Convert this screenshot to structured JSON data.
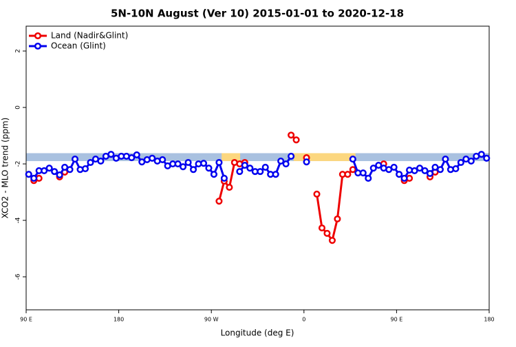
{
  "chart_data": {
    "type": "line",
    "title": "5N-10N August (Ver 10)   2015-01-01 to 2020-12-18",
    "xlabel": "Longitude (deg E)",
    "ylabel": "XCO2 - MLO trend (ppm)",
    "x": [
      92.5,
      97.5,
      102.5,
      107.5,
      112.5,
      117.5,
      122.5,
      127.5,
      132.5,
      137.5,
      142.5,
      147.5,
      152.5,
      157.5,
      162.5,
      167.5,
      172.5,
      177.5,
      182.5,
      187.5,
      192.5,
      197.5,
      202.5,
      207.5,
      212.5,
      217.5,
      222.5,
      227.5,
      232.5,
      237.5,
      242.5,
      247.5,
      252.5,
      257.5,
      262.5,
      267.5,
      272.5,
      277.5,
      282.5,
      287.5,
      292.5,
      297.5,
      302.5,
      307.5,
      312.5,
      317.5,
      322.5,
      327.5,
      332.5,
      337.5,
      342.5,
      347.5,
      352.5,
      357.5,
      362.5,
      367.5,
      372.5,
      377.5,
      382.5,
      387.5,
      392.5,
      397.5,
      402.5,
      407.5,
      412.5,
      417.5,
      422.5,
      427.5,
      432.5,
      437.5,
      442.5,
      447.5,
      452.5,
      457.5,
      462.5,
      467.5,
      472.5,
      477.5,
      482.5,
      487.5,
      492.5,
      497.5,
      502.5,
      507.5,
      512.5,
      517.5,
      522.5,
      527.5,
      532.5,
      537.5
    ],
    "series": [
      {
        "name": "Land (Nadir&Glint)",
        "color": "#ee0000",
        "values": [
          null,
          -2.59,
          -2.51,
          null,
          null,
          null,
          -2.46,
          -2.29,
          null,
          null,
          null,
          null,
          null,
          null,
          null,
          null,
          null,
          null,
          null,
          null,
          null,
          null,
          null,
          null,
          null,
          null,
          null,
          null,
          null,
          null,
          null,
          null,
          null,
          null,
          null,
          null,
          null,
          -3.32,
          -2.61,
          -2.83,
          -1.95,
          -2.0,
          -1.95,
          null,
          null,
          null,
          null,
          null,
          null,
          null,
          null,
          -0.98,
          -1.15,
          null,
          -1.78,
          null,
          -3.07,
          -4.27,
          -4.46,
          -4.71,
          -3.95,
          -2.37,
          -2.37,
          -2.2,
          null,
          null,
          null,
          null,
          null,
          -2.0,
          null,
          null,
          null,
          -2.59,
          -2.51,
          null,
          null,
          null,
          -2.46,
          -2.29,
          null,
          null,
          null,
          null,
          null,
          null,
          null,
          null,
          null,
          null
        ]
      },
      {
        "name": "Ocean (Glint)",
        "color": "#0000ee",
        "values": [
          -2.37,
          -2.51,
          -2.24,
          -2.24,
          -2.15,
          -2.27,
          -2.39,
          -2.12,
          -2.2,
          -1.83,
          -2.2,
          -2.17,
          -1.95,
          -1.83,
          -1.9,
          -1.73,
          -1.66,
          -1.8,
          -1.73,
          -1.73,
          -1.78,
          -1.68,
          -1.93,
          -1.85,
          -1.8,
          -1.9,
          -1.85,
          -2.07,
          -2.0,
          -2.0,
          -2.1,
          -1.95,
          -2.2,
          -2.0,
          -1.98,
          -2.15,
          -2.37,
          -1.95,
          -2.51,
          null,
          null,
          -2.27,
          -2.05,
          -2.15,
          -2.27,
          -2.27,
          -2.12,
          -2.37,
          -2.37,
          -1.9,
          -2.0,
          -1.73,
          null,
          null,
          -1.93,
          null,
          null,
          null,
          null,
          null,
          null,
          null,
          null,
          -1.83,
          -2.32,
          -2.32,
          -2.51,
          -2.15,
          -2.05,
          -2.15,
          -2.2,
          -2.12,
          -2.37,
          -2.51,
          -2.22,
          -2.24,
          -2.15,
          -2.24,
          -2.34,
          -2.12,
          -2.2,
          -1.83,
          -2.2,
          -2.17,
          -1.95,
          -1.83,
          -1.9,
          -1.73,
          -1.66,
          -1.8
        ]
      }
    ],
    "band": {
      "ylim": [
        -1.9,
        -1.62
      ],
      "color": "#a9c1e0",
      "segments": [
        {
          "xlim": [
            280,
            298
          ],
          "color": "#fcd77f"
        },
        {
          "xlim": [
            350,
            410
          ],
          "color": "#fcd77f"
        }
      ]
    },
    "xlim": [
      90,
      540
    ],
    "xticks": [
      {
        "value": 90,
        "label": "90 E"
      },
      180,
      {
        "value": 270,
        "label": "90 W"
      },
      0,
      {
        "value": 450,
        "label": "90 E"
      },
      {
        "value": 540,
        "label": "180"
      }
    ],
    "ylim": [
      -7.17,
      2.88
    ],
    "yticks": [
      2,
      0,
      -2,
      -4,
      -6
    ],
    "legend": "top-left"
  }
}
